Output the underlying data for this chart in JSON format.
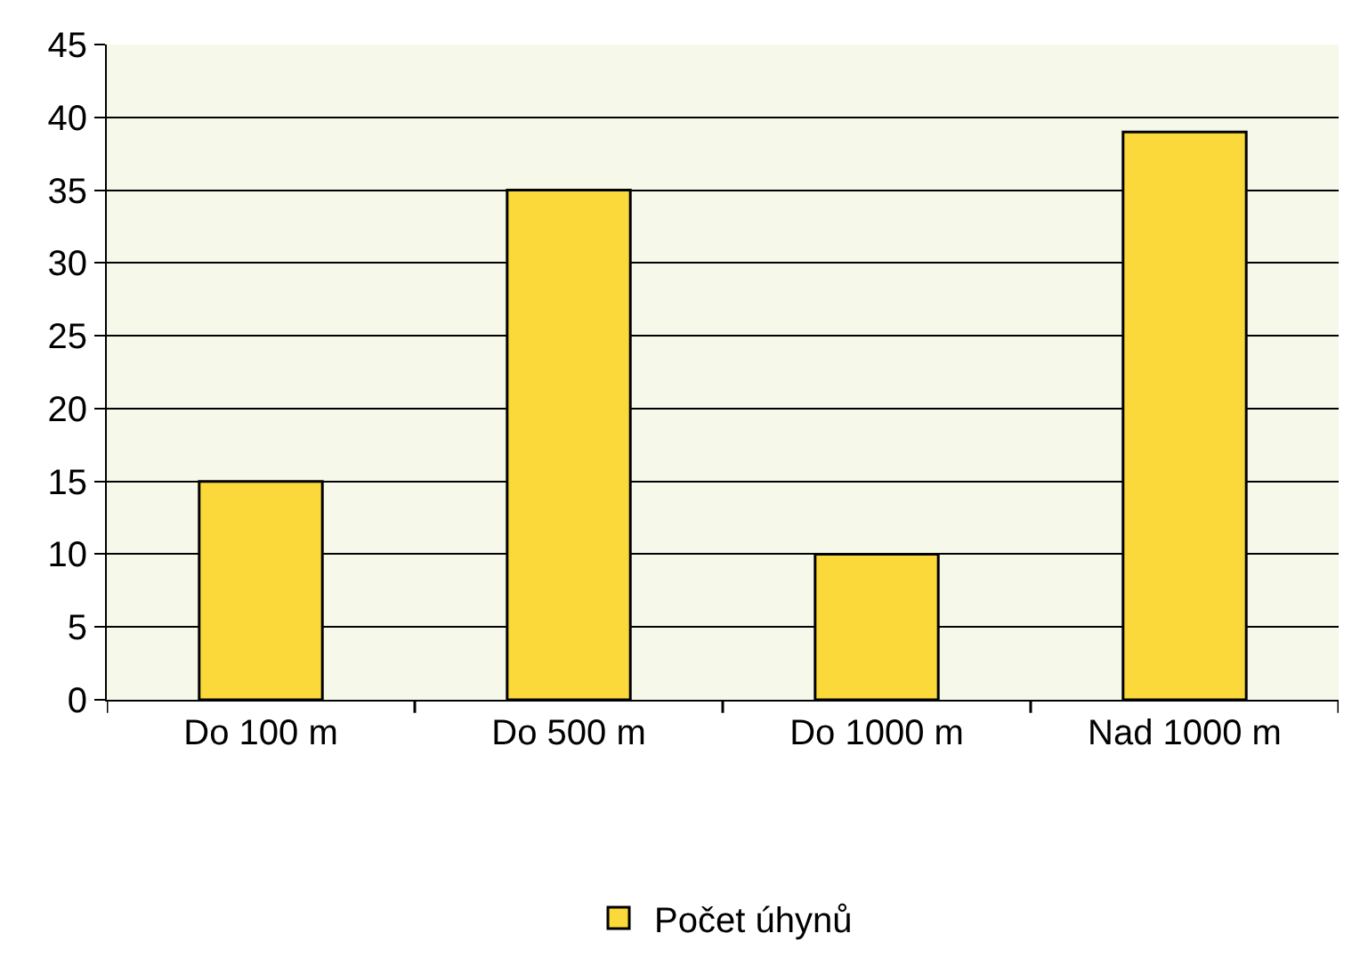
{
  "chart_data": {
    "type": "bar",
    "categories": [
      "Do 100 m",
      "Do 500 m",
      "Do 1000 m",
      "Nad 1000 m"
    ],
    "series": [
      {
        "name": "Počet úhynů",
        "color": "#fcd93a",
        "values": [
          15,
          35,
          10,
          39
        ]
      }
    ],
    "ylim": [
      0,
      45
    ],
    "yticks": [
      0,
      5,
      10,
      15,
      20,
      25,
      30,
      35,
      40,
      45
    ],
    "grid": "y",
    "legend": "bottom"
  }
}
